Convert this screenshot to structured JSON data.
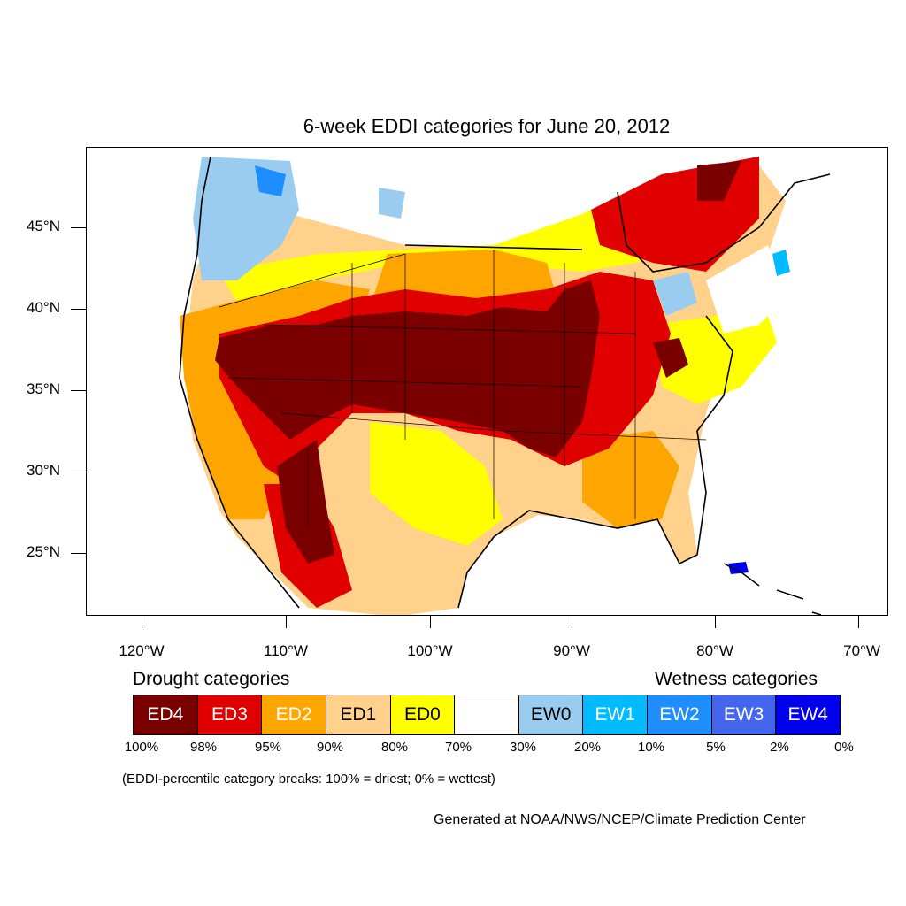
{
  "title": "6-week EDDI categories for June 20, 2012",
  "map": {
    "lat_labels": [
      "45°N",
      "40°N",
      "35°N",
      "30°N",
      "25°N"
    ],
    "lon_labels": [
      "120°W",
      "110°W",
      "100°W",
      "90°W",
      "80°W",
      "70°W"
    ]
  },
  "legend": {
    "drought_heading": "Drought categories",
    "wetness_heading": "Wetness categories",
    "categories": [
      {
        "label": "ED4",
        "color": "#7a0000"
      },
      {
        "label": "ED3",
        "color": "#e00000"
      },
      {
        "label": "ED2",
        "color": "#ffa500"
      },
      {
        "label": "ED1",
        "color": "#ffd18a"
      },
      {
        "label": "ED0",
        "color": "#ffff00"
      },
      {
        "label": "",
        "color": "#ffffff"
      },
      {
        "label": "EW0",
        "color": "#99ccee"
      },
      {
        "label": "EW1",
        "color": "#00bbff"
      },
      {
        "label": "EW2",
        "color": "#1e8eff"
      },
      {
        "label": "EW3",
        "color": "#4466ee"
      },
      {
        "label": "EW4",
        "color": "#0000ee"
      }
    ],
    "percentiles": [
      "100%",
      "98%",
      "95%",
      "90%",
      "80%",
      "70%",
      "30%",
      "20%",
      "10%",
      "5%",
      "2%",
      "0%"
    ]
  },
  "note": "(EDDI-percentile category breaks: 100% = driest; 0% = wettest)",
  "credit": "Generated at NOAA/NWS/NCEP/Climate Prediction Center"
}
